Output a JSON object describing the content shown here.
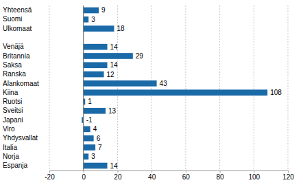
{
  "chart_data": {
    "type": "bar",
    "orientation": "horizontal",
    "categories": [
      "Yhteensä",
      "Suomi",
      "Ulkomaat",
      null,
      "Venäjä",
      "Britannia",
      "Saksa",
      "Ranska",
      "Alankomaat",
      "Kiina",
      "Ruotsi",
      "Sveitsi",
      "Japani",
      "Viro",
      "Yhdysvallat",
      "Italia",
      "Norja",
      "Espanja"
    ],
    "values": [
      9,
      3,
      18,
      null,
      14,
      29,
      14,
      12,
      43,
      108,
      1,
      13,
      -1,
      4,
      6,
      7,
      3,
      14
    ],
    "color": "#1a6aa8",
    "xlim": [
      -20,
      120
    ],
    "xticks": [
      -20,
      0,
      20,
      40,
      60,
      80,
      100,
      120
    ],
    "grid": true,
    "data_labels": true
  }
}
